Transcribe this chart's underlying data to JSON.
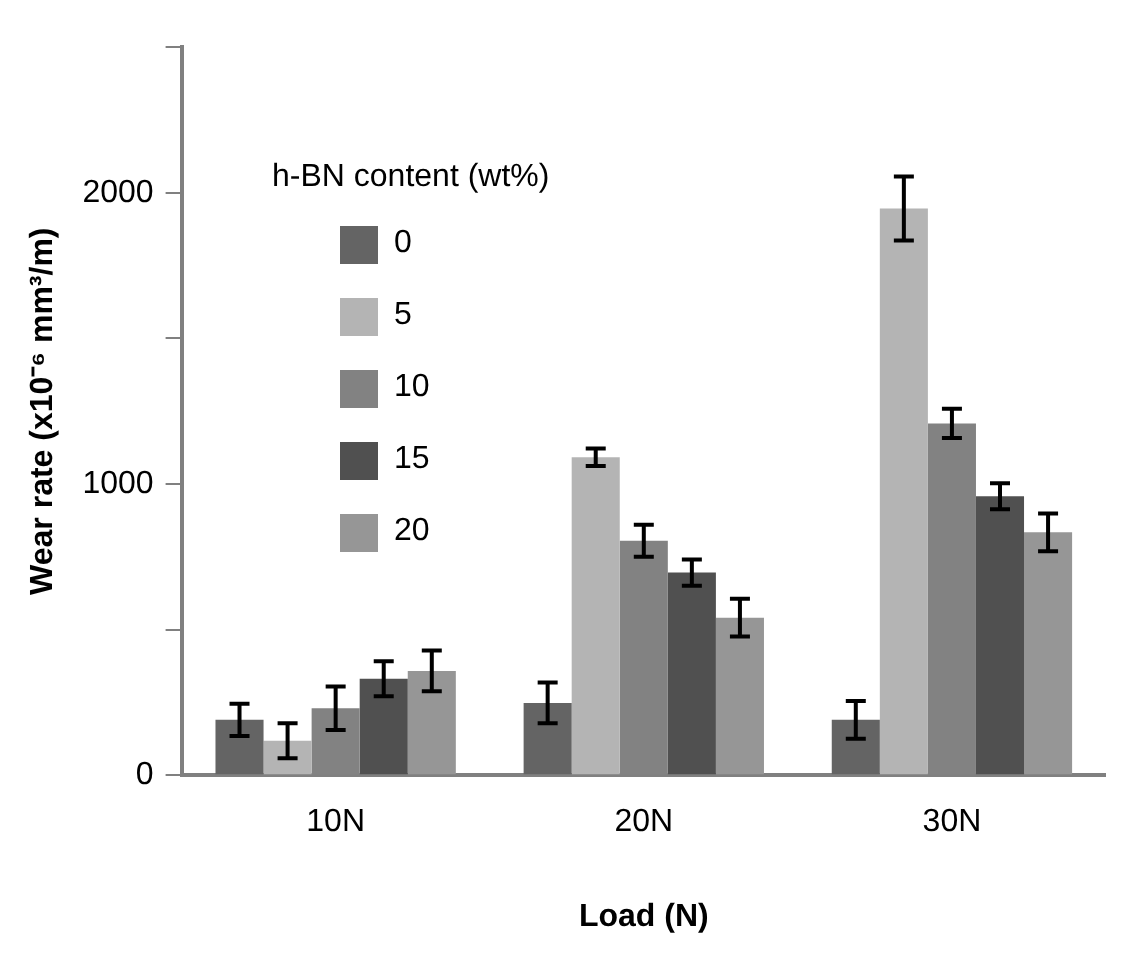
{
  "chart_data": {
    "type": "bar",
    "xlabel": "Load (N)",
    "ylabel": "Wear rate (x10⁻⁶ mm³/m)",
    "legend_title": "h-BN content (wt%)",
    "categories": [
      "10N",
      "20N",
      "30N"
    ],
    "series": [
      {
        "name": "0",
        "color": "#646464",
        "values": [
          190,
          248,
          190
        ],
        "errors": [
          55,
          70,
          65
        ]
      },
      {
        "name": "5",
        "color": "#b4b4b4",
        "values": [
          118,
          1092,
          1946
        ],
        "errors": [
          60,
          30,
          110
        ]
      },
      {
        "name": "10",
        "color": "#828282",
        "values": [
          230,
          805,
          1208
        ],
        "errors": [
          75,
          55,
          50
        ]
      },
      {
        "name": "15",
        "color": "#505050",
        "values": [
          331,
          696,
          958
        ],
        "errors": [
          60,
          45,
          45
        ]
      },
      {
        "name": "20",
        "color": "#969696",
        "values": [
          358,
          541,
          834
        ],
        "errors": [
          70,
          65,
          65
        ]
      }
    ],
    "ylim": [
      0,
      2500
    ],
    "yticks": [
      0,
      {
        "value": 500,
        "label": null
      },
      1000,
      {
        "value": 1500,
        "label": null
      },
      2000,
      {
        "value": 2500,
        "label": null
      }
    ],
    "grid": false,
    "legend": "top left"
  }
}
